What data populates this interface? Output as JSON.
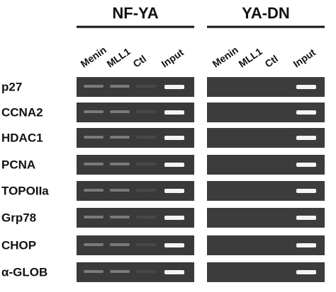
{
  "groups": [
    {
      "title": "NF-YA",
      "lanes": [
        "Menin",
        "MLL1",
        "Ctl",
        "Input"
      ]
    },
    {
      "title": "YA-DN",
      "lanes": [
        "Menin",
        "MLL1",
        "Ctl",
        "Input"
      ]
    }
  ],
  "rows": [
    "p27",
    "CCNA2",
    "HDAC1",
    "PCNA",
    "TOPOIIa",
    "Grp78",
    "CHOP",
    "α-GLOB"
  ]
}
